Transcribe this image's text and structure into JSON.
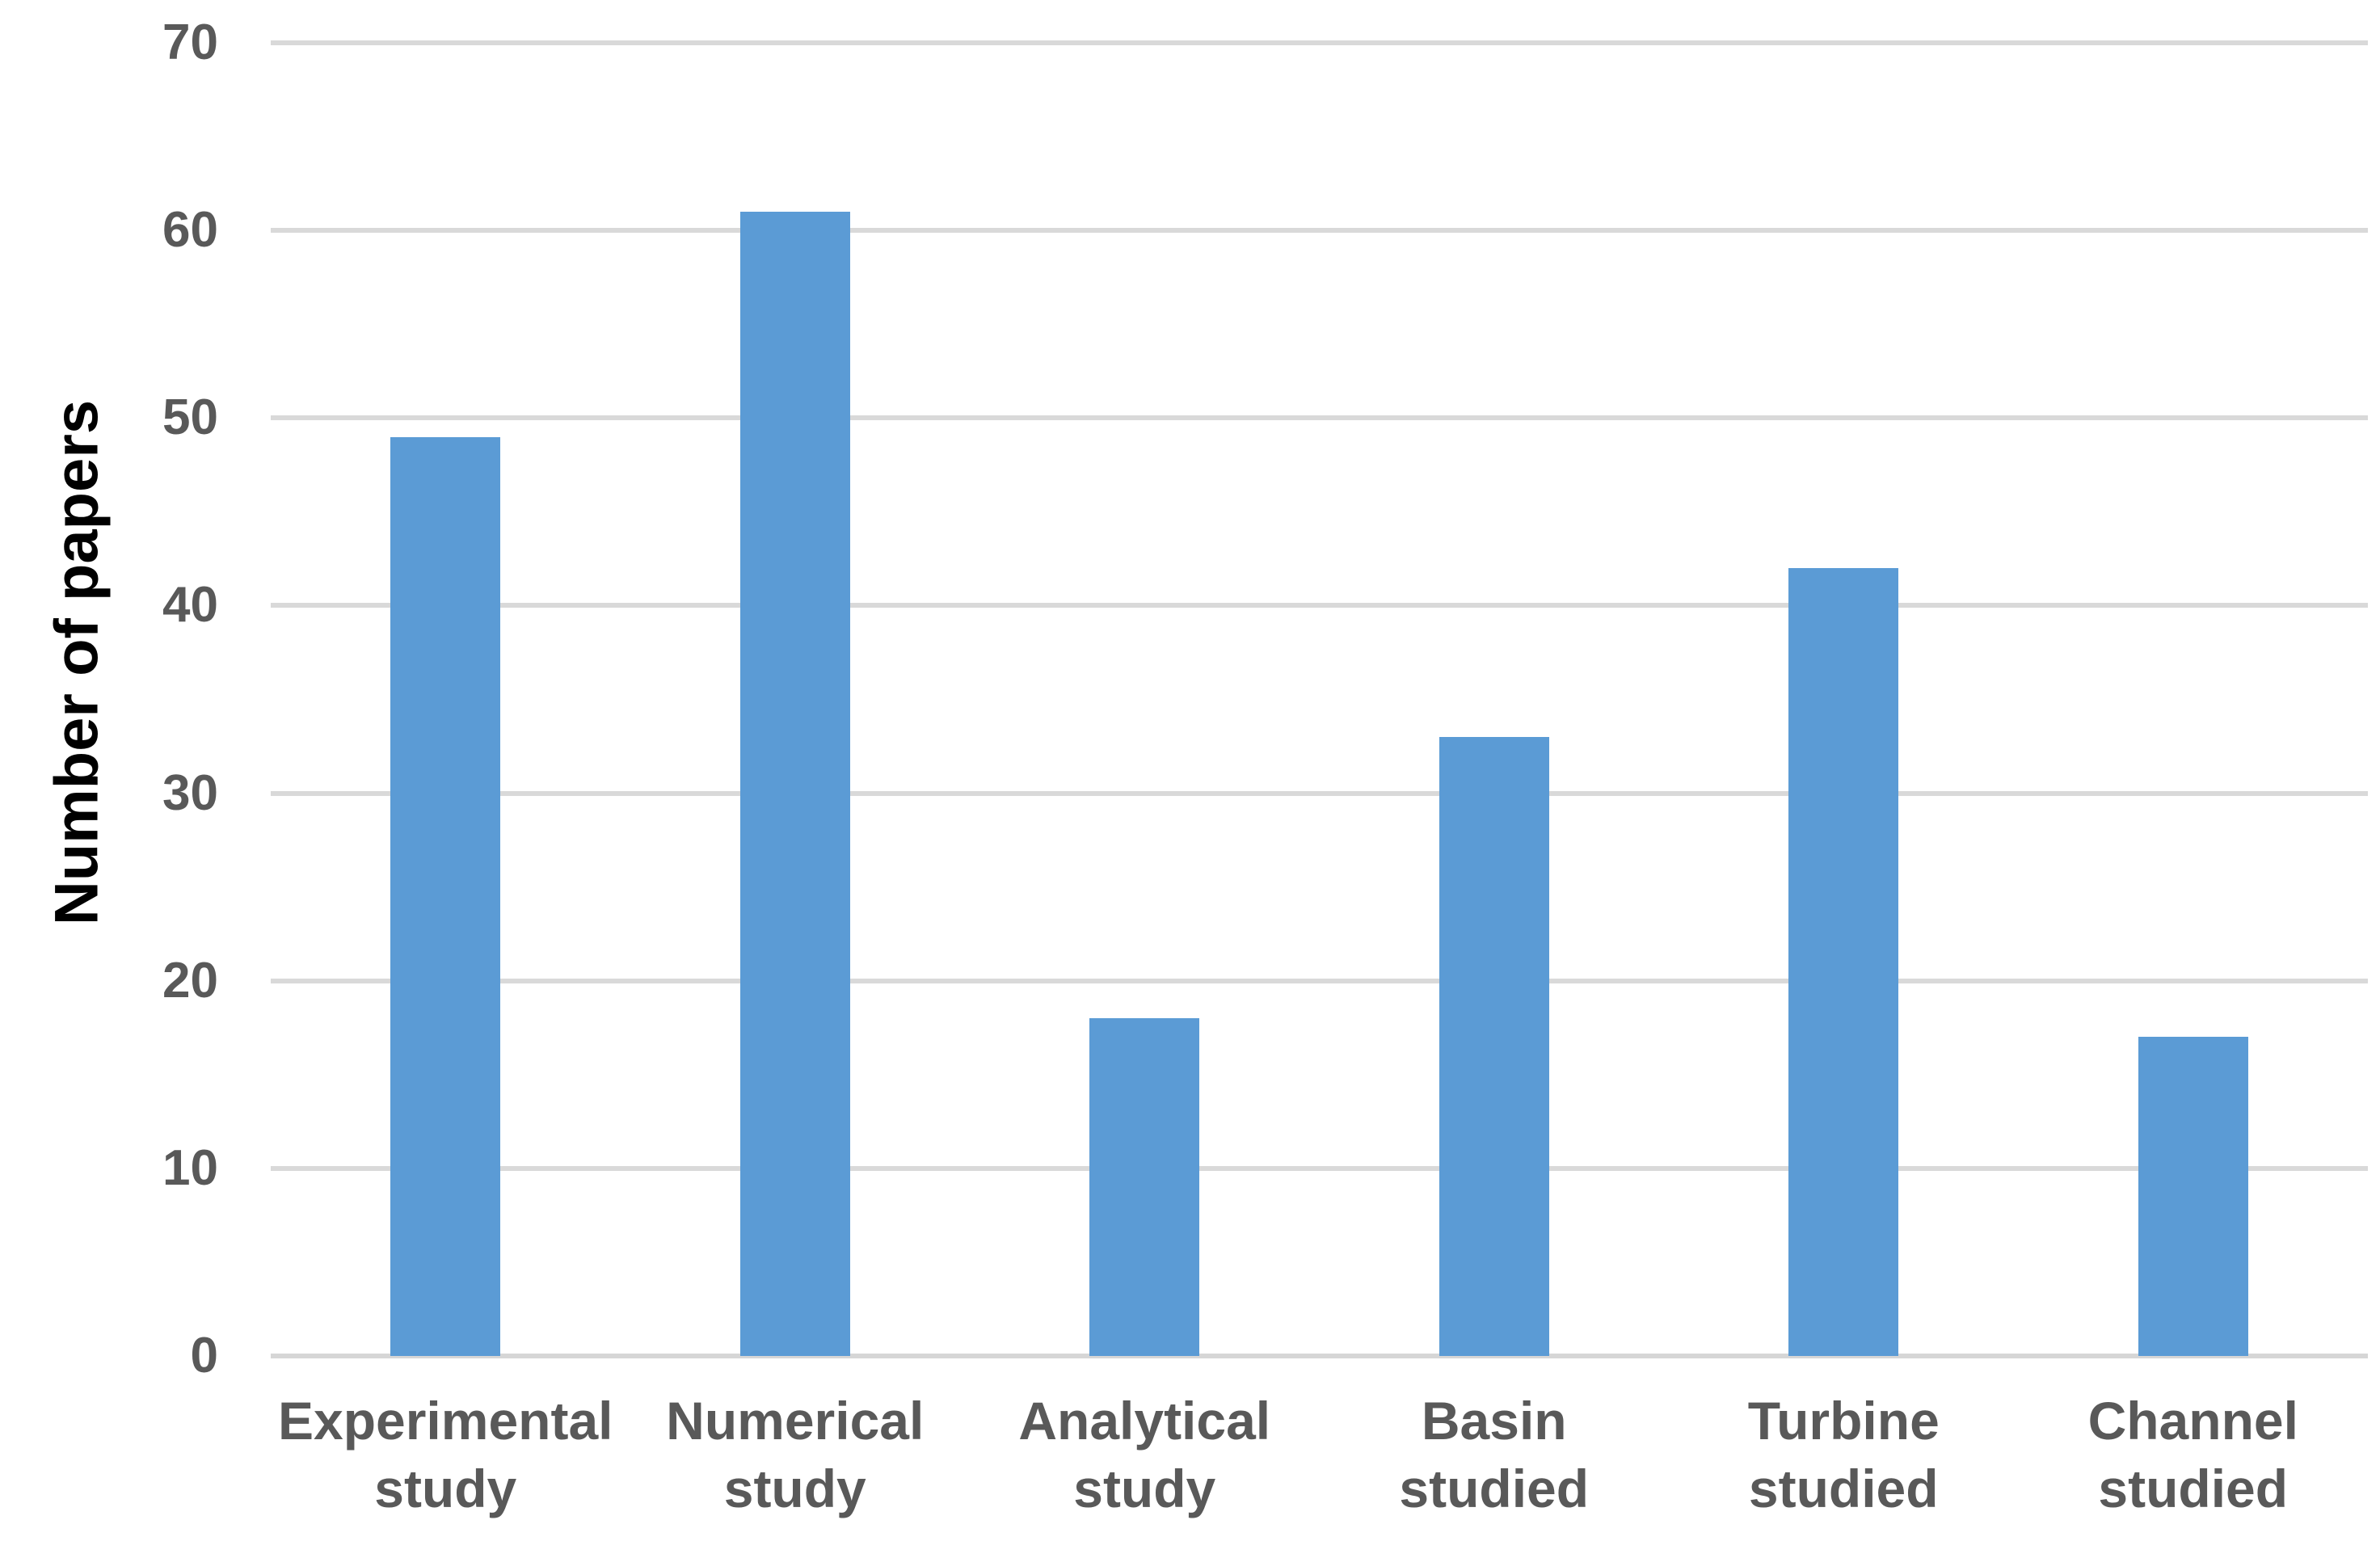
{
  "chart_data": {
    "type": "bar",
    "title": "",
    "categories": [
      [
        "Experimental",
        "study"
      ],
      [
        "Numerical",
        "study"
      ],
      [
        "Analytical",
        "study"
      ],
      [
        "Basin",
        "studied"
      ],
      [
        "Turbine",
        "studied"
      ],
      [
        "Channel",
        "studied"
      ]
    ],
    "values": [
      49,
      61,
      18,
      33,
      42,
      17
    ],
    "ylabel": "Number of papers",
    "xlabel": "",
    "ylim": [
      0,
      70
    ],
    "yticks": [
      0,
      10,
      20,
      30,
      40,
      50,
      60,
      70
    ],
    "grid": "horizontal",
    "legend_position": "none",
    "bar_color": "#5B9BD5",
    "gridline_color": "#D9D9D9",
    "axis_line_color": "#D6D6D6",
    "tick_label_color": "#595959",
    "category_label_color": "#595959",
    "ylabel_color": "#000000",
    "background_color": "#FFFFFF"
  }
}
